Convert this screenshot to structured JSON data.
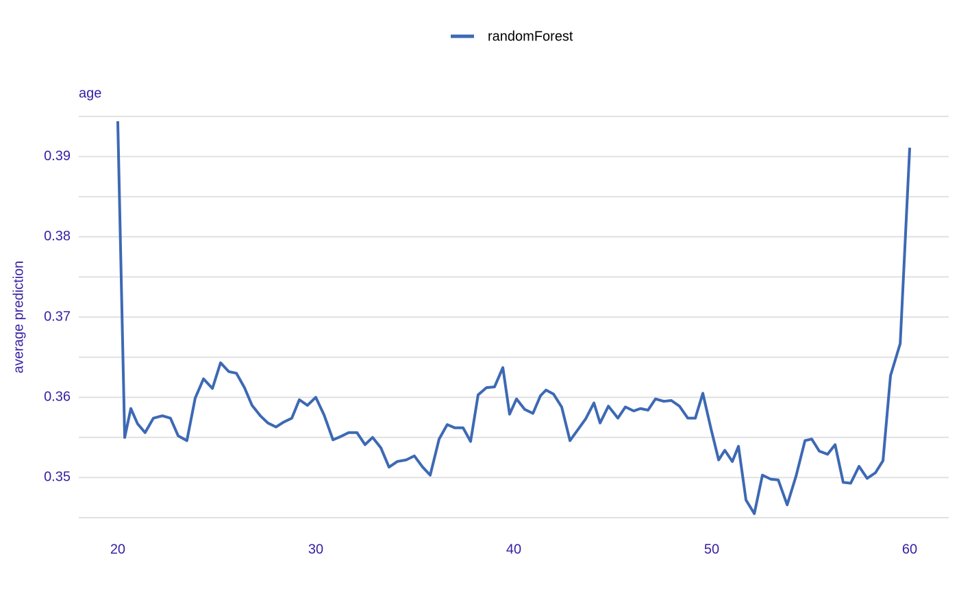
{
  "chart_data": {
    "type": "line",
    "title": "age",
    "y_label": "average prediction",
    "x": [
      20.0,
      20.35,
      20.66,
      21.0,
      21.38,
      21.8,
      22.25,
      22.66,
      23.05,
      23.49,
      23.91,
      24.33,
      24.78,
      25.19,
      25.61,
      25.99,
      26.4,
      26.78,
      27.2,
      27.58,
      27.99,
      28.37,
      28.79,
      29.17,
      29.58,
      30.0,
      30.42,
      30.87,
      31.25,
      31.66,
      32.08,
      32.49,
      32.87,
      33.29,
      33.7,
      34.12,
      34.57,
      34.98,
      35.4,
      35.78,
      36.23,
      36.64,
      37.02,
      37.44,
      37.82,
      38.2,
      38.62,
      39.03,
      39.45,
      39.79,
      40.14,
      40.55,
      40.97,
      41.35,
      41.63,
      42.01,
      42.42,
      42.84,
      43.22,
      43.63,
      44.05,
      44.36,
      44.78,
      45.26,
      45.64,
      46.06,
      46.4,
      46.78,
      47.16,
      47.58,
      47.96,
      48.37,
      48.79,
      49.17,
      49.55,
      49.97,
      50.35,
      50.66,
      51.04,
      51.35,
      51.73,
      52.15,
      52.56,
      52.98,
      53.36,
      53.81,
      54.26,
      54.71,
      55.05,
      55.43,
      55.85,
      56.23,
      56.64,
      57.02,
      57.44,
      57.85,
      58.27,
      58.65,
      59.03,
      59.52,
      60.0
    ],
    "series": [
      {
        "name": "randomForest",
        "color": "#3d69b4",
        "values": [
          0.3944,
          0.355,
          0.3586,
          0.3567,
          0.3556,
          0.3574,
          0.3577,
          0.3574,
          0.3552,
          0.3546,
          0.3599,
          0.3623,
          0.3611,
          0.3643,
          0.3632,
          0.363,
          0.3612,
          0.359,
          0.3577,
          0.3568,
          0.3563,
          0.3569,
          0.3574,
          0.3597,
          0.359,
          0.36,
          0.3578,
          0.3547,
          0.3551,
          0.3556,
          0.3556,
          0.3541,
          0.355,
          0.3537,
          0.3513,
          0.352,
          0.3522,
          0.3527,
          0.3513,
          0.3503,
          0.3548,
          0.3566,
          0.3562,
          0.3562,
          0.3545,
          0.3603,
          0.3612,
          0.3613,
          0.3637,
          0.3579,
          0.3598,
          0.3585,
          0.358,
          0.3602,
          0.3609,
          0.3604,
          0.3588,
          0.3546,
          0.3559,
          0.3573,
          0.3593,
          0.3568,
          0.3589,
          0.3574,
          0.3588,
          0.3583,
          0.3586,
          0.3584,
          0.3598,
          0.3595,
          0.3596,
          0.3589,
          0.3574,
          0.3574,
          0.3605,
          0.356,
          0.3522,
          0.3534,
          0.352,
          0.3539,
          0.3472,
          0.3455,
          0.3503,
          0.3498,
          0.3497,
          0.3466,
          0.3502,
          0.3546,
          0.3548,
          0.3533,
          0.3529,
          0.3541,
          0.3494,
          0.3493,
          0.3514,
          0.3499,
          0.3506,
          0.3521,
          0.3627,
          0.3667,
          0.3911
        ]
      }
    ],
    "xlim": [
      18.03,
      61.97
    ],
    "ylim": [
      0.345,
      0.395
    ],
    "xticks": [
      20,
      30,
      40,
      50,
      60
    ],
    "yticks": [
      0.35,
      0.36,
      0.37,
      0.38,
      0.39
    ],
    "minor_yticks": [
      0.345,
      0.355,
      0.365,
      0.375,
      0.385,
      0.395
    ],
    "grid": true,
    "legend": "top"
  }
}
